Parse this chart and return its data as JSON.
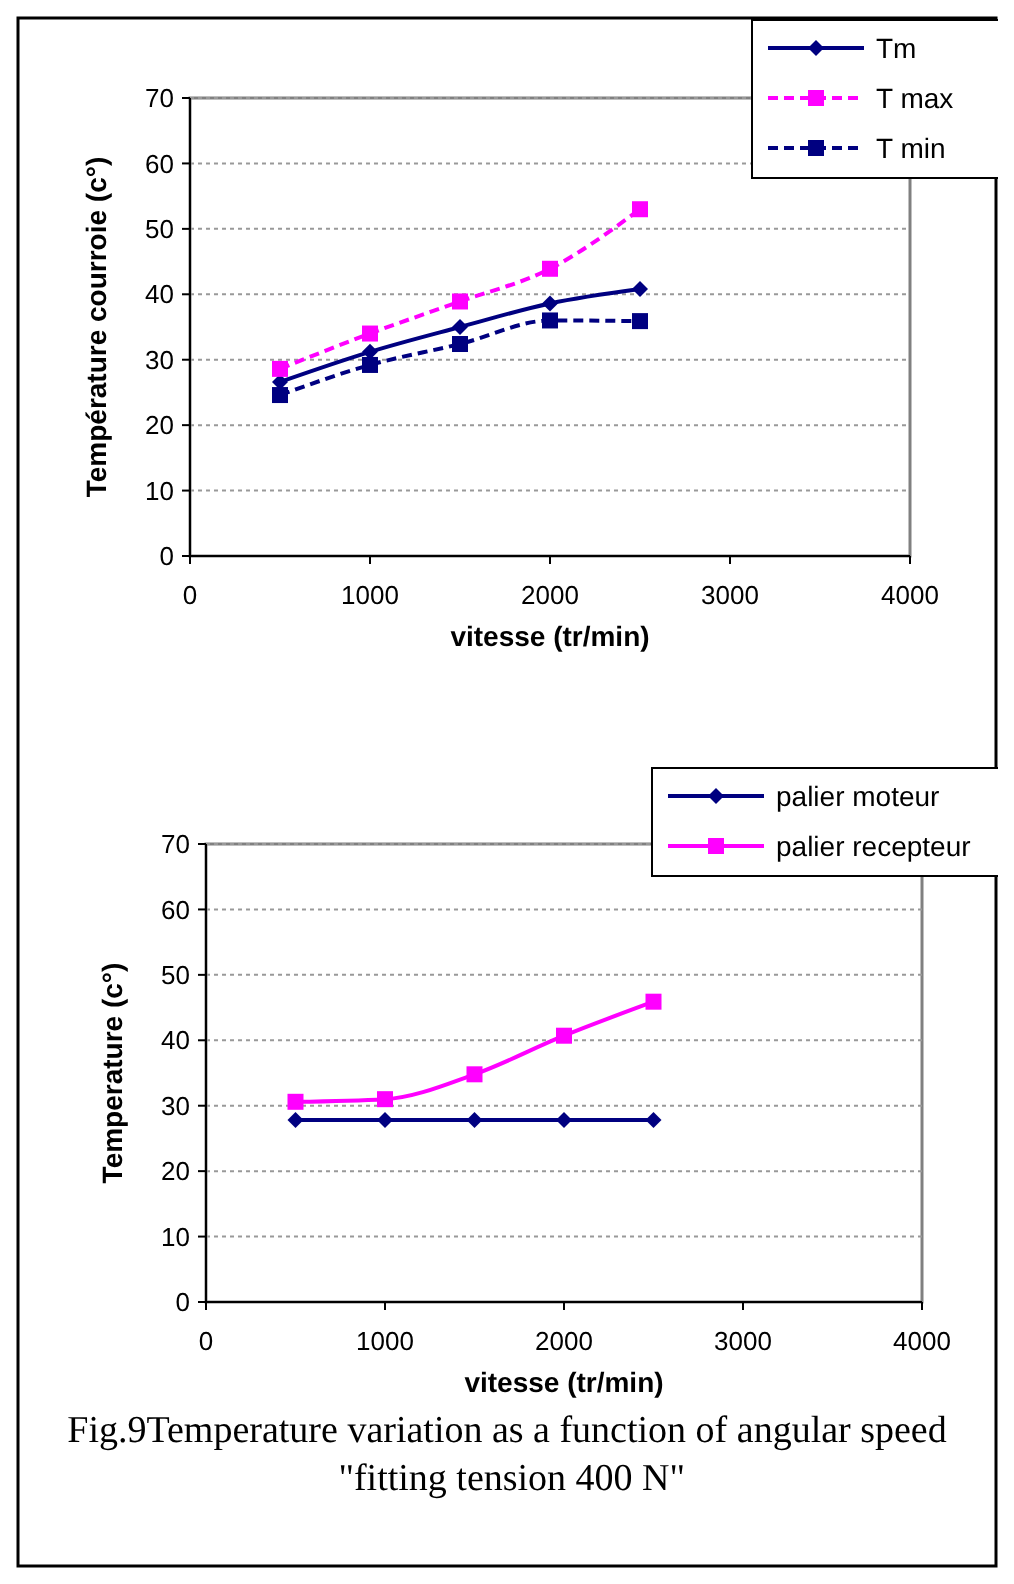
{
  "chart_data": [
    {
      "type": "line",
      "xlabel": "vitesse (tr/min)",
      "ylabel": "Température courroie (c°)",
      "xlim": [
        0,
        4000
      ],
      "xticks": [
        0,
        1000,
        2000,
        3000,
        4000
      ],
      "ylim": [
        0,
        70
      ],
      "yticks": [
        0,
        10,
        20,
        30,
        40,
        50,
        60,
        70
      ],
      "grid": "y",
      "legend": "top right",
      "series": [
        {
          "name": "Tm",
          "color": "#000080",
          "marker": "diamond",
          "line_style": "solid",
          "x": [
            500,
            1000,
            1500,
            2000,
            2500
          ],
          "values": [
            26.6,
            31.2,
            35,
            38.6,
            40.8
          ]
        },
        {
          "name": "T max",
          "color": "#ff00ff",
          "marker": "square",
          "line_style": "dashed",
          "x": [
            500,
            1000,
            1500,
            2000,
            2500
          ],
          "values": [
            28.6,
            34,
            38.9,
            43.9,
            53
          ]
        },
        {
          "name": "T min",
          "color": "#000080",
          "marker": "square",
          "line_style": "dashed",
          "x": [
            500,
            1000,
            1500,
            2000,
            2500
          ],
          "values": [
            24.6,
            29.2,
            32.4,
            36,
            35.9
          ]
        }
      ]
    },
    {
      "type": "line",
      "xlabel": "vitesse (tr/min)",
      "ylabel": "Temperature (c°)",
      "xlim": [
        0,
        4000
      ],
      "xticks": [
        0,
        1000,
        2000,
        3000,
        4000
      ],
      "ylim": [
        0,
        70
      ],
      "yticks": [
        0,
        10,
        20,
        30,
        40,
        50,
        60,
        70
      ],
      "grid": "y",
      "legend": "top right",
      "annotations": [
        "Fig.9Temperature variation as a function of angular speed  \"fitting tension 400 N\""
      ],
      "series": [
        {
          "name": "palier moteur",
          "color": "#000080",
          "marker": "diamond",
          "line_style": "solid",
          "x": [
            500,
            1000,
            1500,
            2000,
            2500
          ],
          "values": [
            27.8,
            27.8,
            27.8,
            27.8,
            27.8
          ]
        },
        {
          "name": "palier recepteur",
          "color": "#ff00ff",
          "marker": "square",
          "line_style": "solid",
          "x": [
            500,
            1000,
            1500,
            2000,
            2500
          ],
          "values": [
            30.6,
            31,
            34.8,
            40.7,
            45.9
          ]
        }
      ]
    }
  ]
}
